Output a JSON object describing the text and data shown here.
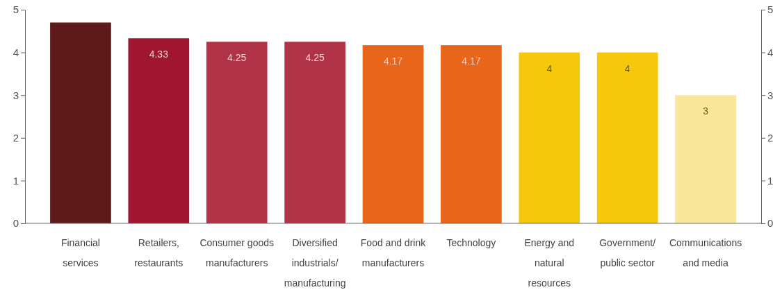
{
  "chart_data": {
    "type": "bar",
    "categories": [
      "Financial\nservices",
      "Retailers,\nrestaurants",
      "Consumer goods\nmanufacturers",
      "Diversified\nindustrials/\nmanufacturing",
      "Food and drink\nmanufacturers",
      "Technology",
      "Energy and\nnatural\nresources",
      "Government/\npublic sector",
      "Communications\nand media"
    ],
    "values": [
      4.7,
      4.33,
      4.25,
      4.25,
      4.17,
      4.17,
      4,
      4,
      3
    ],
    "value_labels": [
      null,
      "4.33",
      "4.25",
      "4.25",
      "4.17",
      "4.17",
      "4",
      "4",
      "3"
    ],
    "colors": [
      "#5c1a1b",
      "#a0152f",
      "#b03347",
      "#b03347",
      "#e8661c",
      "#e8661c",
      "#f6c80c",
      "#f6c80c",
      "#fbe79a"
    ],
    "ylim": [
      0,
      5
    ],
    "yticks": [
      0,
      1,
      2,
      3,
      4,
      5
    ],
    "y2lim": [
      0,
      5
    ],
    "y2ticks": [
      0,
      1,
      2,
      3,
      4,
      5
    ],
    "grid": false
  }
}
